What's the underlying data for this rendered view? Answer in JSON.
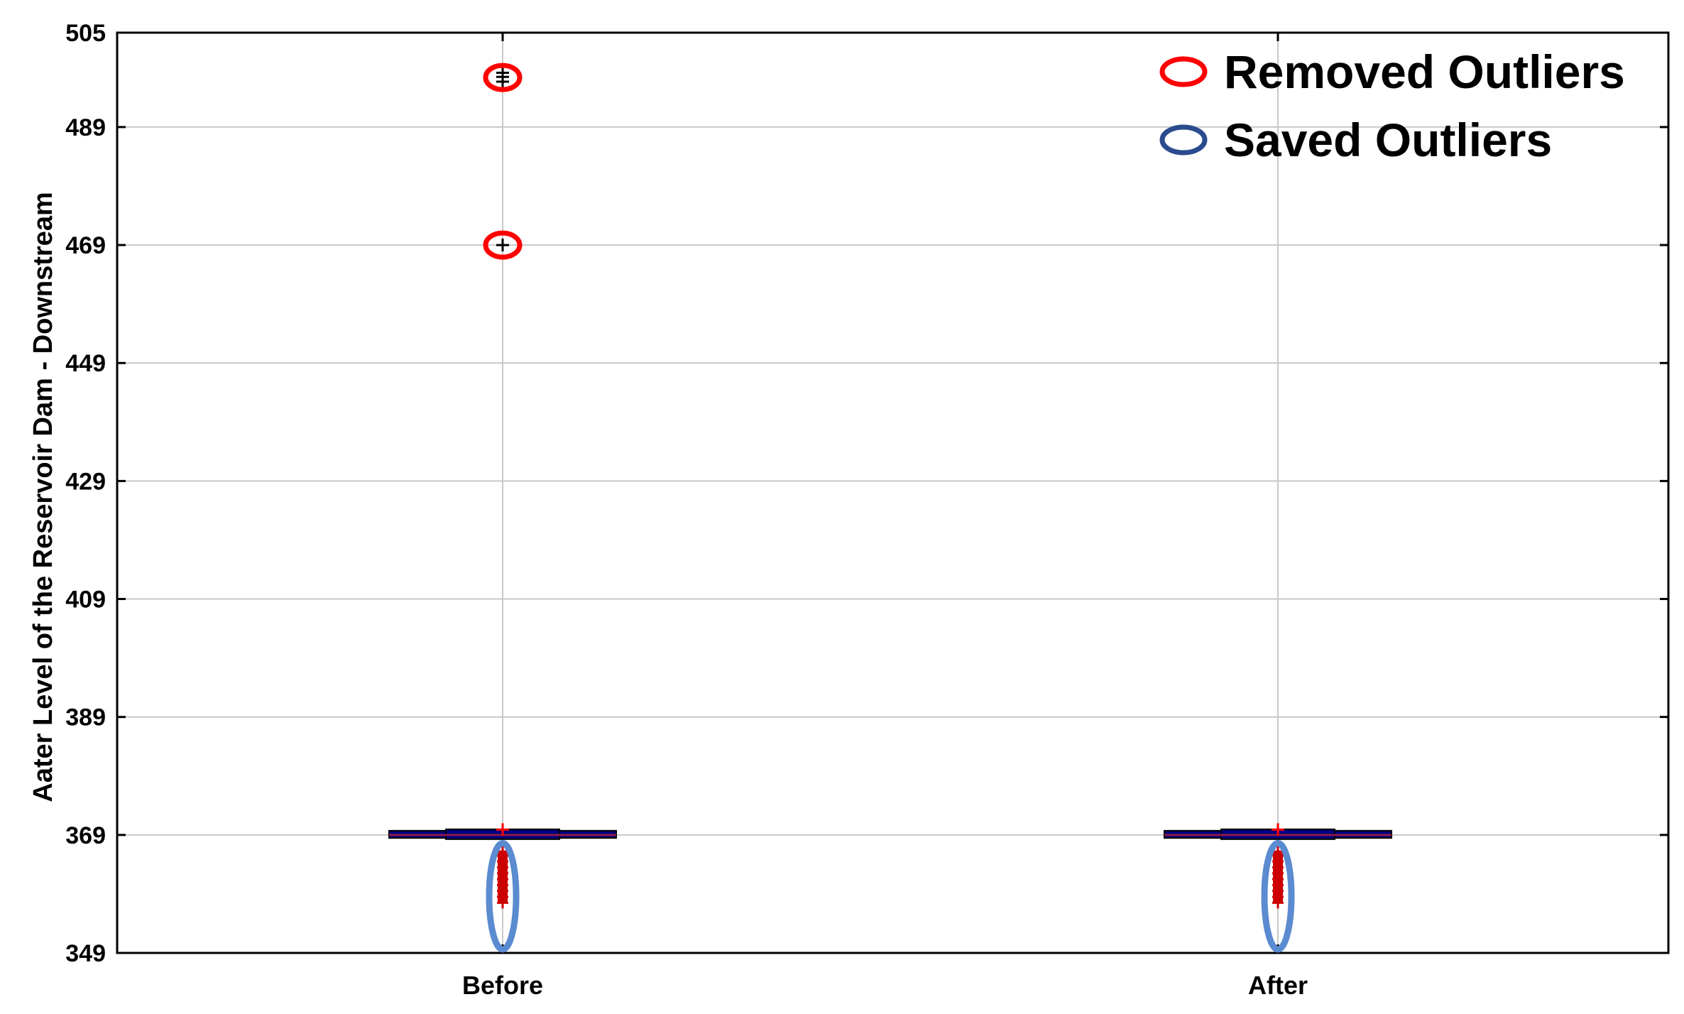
{
  "chart_data": {
    "type": "boxplot",
    "title": "",
    "xlabel": "",
    "ylabel": "Aater Level of the Reservoir Dam - Downstream",
    "ylim": [
      349,
      505
    ],
    "yticks": [
      349,
      369,
      389,
      409,
      429,
      449,
      469,
      489,
      505
    ],
    "grid": true,
    "categories": [
      "Before",
      "After"
    ],
    "boxes": [
      {
        "category": "Before",
        "whisker_low": 368.6,
        "q1": 368.6,
        "median": 369.0,
        "q3": 369.6,
        "whisker_high": 369.6,
        "outliers_low": [
          357.5,
          358.5,
          359.5,
          360.5,
          361.5,
          362.5,
          363.5,
          364.5,
          365.5,
          366.2
        ],
        "outliers_high": [
          369.9,
          496.7,
          497.5,
          498.2,
          469.0
        ]
      },
      {
        "category": "After",
        "whisker_low": 368.6,
        "q1": 368.6,
        "median": 369.0,
        "q3": 369.6,
        "whisker_high": 369.6,
        "outliers_low": [
          357.5,
          358.5,
          359.5,
          360.5,
          361.5,
          362.5,
          363.5,
          364.5,
          365.5,
          366.2
        ],
        "outliers_high": [
          369.9
        ]
      }
    ],
    "annotations": [
      {
        "category": "Before",
        "kind": "removed",
        "y": 497.4
      },
      {
        "category": "Before",
        "kind": "removed",
        "y": 469.0
      },
      {
        "category": "Before",
        "kind": "saved",
        "y_low": 349.6,
        "y_high": 367.6
      },
      {
        "category": "After",
        "kind": "saved",
        "y_low": 349.6,
        "y_high": 367.6
      }
    ],
    "legend": {
      "placement": "top-right",
      "entries": [
        {
          "label": "Removed Outliers",
          "color": "#ff0000"
        },
        {
          "label": "Saved Outliers",
          "color": "#2a4b8d"
        }
      ]
    },
    "colors": {
      "box_fill": "#000080",
      "median": "#ff0000",
      "outlier": "#cc0000",
      "grid": "#c8c8c8",
      "removed_marker": "#ff0000",
      "saved_marker": "#5b8bd0",
      "legend_saved": "#2a4b8d"
    }
  }
}
